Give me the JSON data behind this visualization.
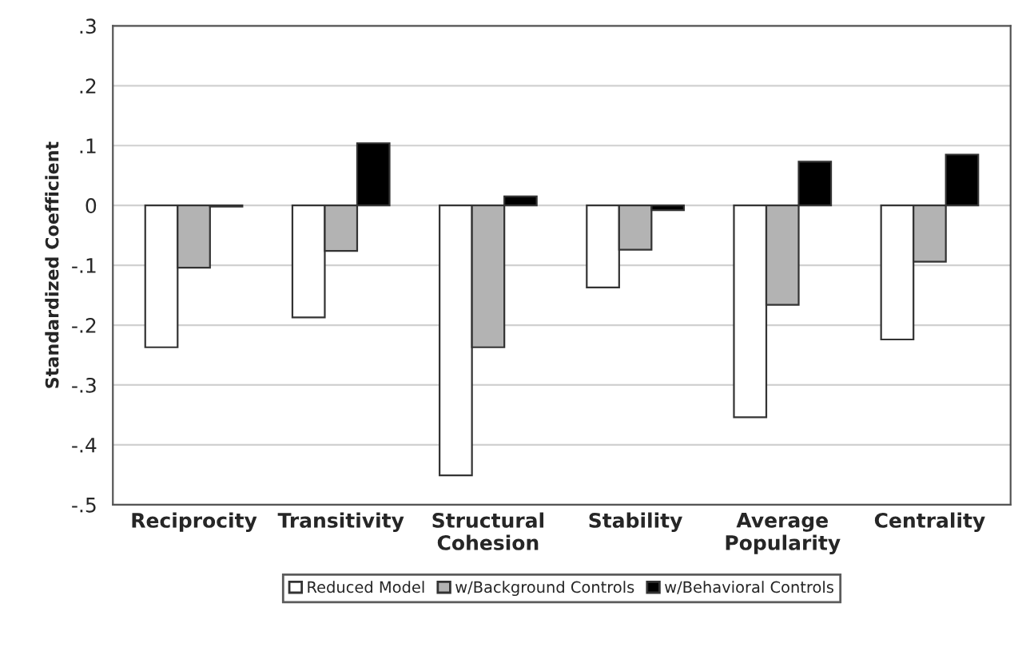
{
  "chart_data": {
    "type": "bar",
    "ylabel": "Standardized Coefficient",
    "categories": [
      "Reciprocity",
      "Transitivity",
      "Structural\nCohesion",
      "Stability",
      "Average\nPopularity",
      "Centrality"
    ],
    "series": [
      {
        "name": "Reduced Model",
        "color": "#ffffff",
        "values": [
          -0.237,
          -0.187,
          -0.451,
          -0.137,
          -0.354,
          -0.224
        ]
      },
      {
        "name": "w/Background Controls",
        "color": "#b3b3b3",
        "values": [
          -0.104,
          -0.076,
          -0.237,
          -0.074,
          -0.166,
          -0.094
        ]
      },
      {
        "name": "w/Behavioral Controls",
        "color": "#000000",
        "values": [
          -0.002,
          0.104,
          0.015,
          -0.008,
          0.073,
          0.085
        ]
      }
    ],
    "ylim": [
      -0.5,
      0.3
    ],
    "yticks": [
      {
        "value": -0.5,
        "label": "-.5"
      },
      {
        "value": -0.4,
        "label": "-.4"
      },
      {
        "value": -0.3,
        "label": "-.3"
      },
      {
        "value": -0.2,
        "label": "-.2"
      },
      {
        "value": -0.1,
        "label": "-.1"
      },
      {
        "value": 0,
        "label": "0"
      },
      {
        "value": 0.1,
        "label": ".1"
      },
      {
        "value": 0.2,
        "label": ".2"
      },
      {
        "value": 0.3,
        "label": ".3"
      }
    ],
    "grid": "y",
    "legend": "bottom"
  }
}
